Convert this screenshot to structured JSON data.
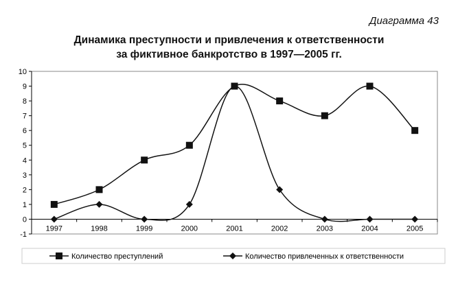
{
  "chart_data": {
    "type": "line",
    "label": "Диаграмма 43",
    "title": [
      "Динамика преступности и привлечения к ответственности",
      "за фиктивное банкротство в 1997—2005 гг."
    ],
    "categories": [
      "1997",
      "1998",
      "1999",
      "2000",
      "2001",
      "2002",
      "2003",
      "2004",
      "2005"
    ],
    "ylim": [
      -1,
      10
    ],
    "yticks": [
      -1,
      0,
      1,
      2,
      3,
      4,
      5,
      6,
      7,
      8,
      9,
      10
    ],
    "grid": false,
    "smooth": true,
    "legend_position": "bottom",
    "series": [
      {
        "name": "Количество преступлений",
        "marker": "square",
        "color": "#111111",
        "values": [
          1,
          2,
          4,
          5,
          9,
          8,
          7,
          9,
          6
        ]
      },
      {
        "name": "Количество привлеченных к ответственности",
        "marker": "diamond",
        "color": "#111111",
        "values": [
          0,
          1,
          0,
          1,
          9,
          2,
          0,
          0,
          0
        ]
      }
    ]
  }
}
